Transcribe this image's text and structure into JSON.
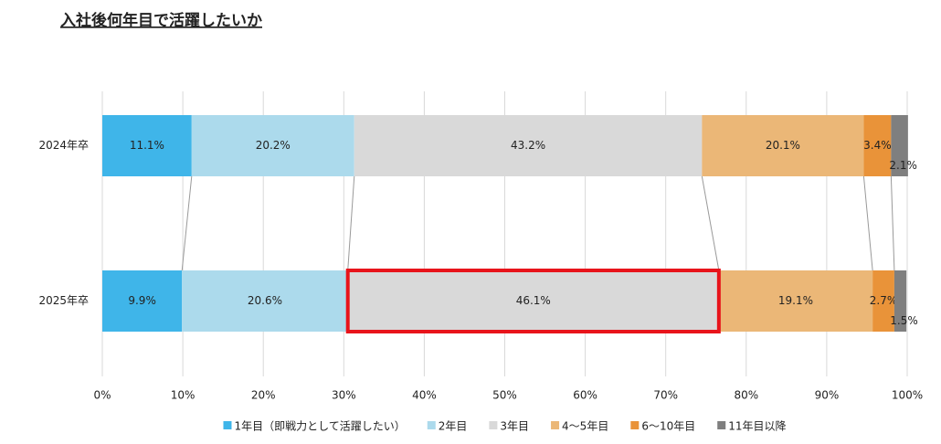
{
  "chart_data": {
    "type": "stacked-bar-horizontal",
    "title": "入社後何年目で活躍したいか",
    "categories": [
      "2024年卒",
      "2025年卒"
    ],
    "series": [
      {
        "name": "1年目（即戦力として活躍したい）",
        "color": "#3fb5e9",
        "values": [
          11.1,
          9.9
        ],
        "value_labels": [
          "11.1%",
          "9.9%"
        ]
      },
      {
        "name": "2年目",
        "color": "#acdaec",
        "values": [
          20.2,
          20.6
        ],
        "value_labels": [
          "20.2%",
          "20.6%"
        ]
      },
      {
        "name": "3年目",
        "color": "#d9d9d9",
        "values": [
          43.2,
          46.1
        ],
        "value_labels": [
          "43.2%",
          "46.1%"
        ]
      },
      {
        "name": "4～5年目",
        "color": "#ebb777",
        "values": [
          20.1,
          19.1
        ],
        "value_labels": [
          "20.1%",
          "19.1%"
        ]
      },
      {
        "name": "6～10年目",
        "color": "#e99339",
        "values": [
          3.4,
          2.7
        ],
        "value_labels": [
          "3.4%",
          "2.7%"
        ]
      },
      {
        "name": "11年目以降",
        "color": "#7f7f7f",
        "values": [
          2.1,
          1.5
        ],
        "value_labels": [
          "2.1%",
          "1.5%"
        ]
      }
    ],
    "xlim": [
      0,
      100
    ],
    "xticks": [
      {
        "value": 0,
        "label": "0%"
      },
      {
        "value": 10,
        "label": "10%"
      },
      {
        "value": 20,
        "label": "20%"
      },
      {
        "value": 30,
        "label": "30%"
      },
      {
        "value": 40,
        "label": "40%"
      },
      {
        "value": 50,
        "label": "50%"
      },
      {
        "value": 60,
        "label": "60%"
      },
      {
        "value": 70,
        "label": "70%"
      },
      {
        "value": 80,
        "label": "80%"
      },
      {
        "value": 90,
        "label": "90%"
      },
      {
        "value": 100,
        "label": "100%"
      }
    ],
    "grid": true,
    "legend": "bottom",
    "highlight": {
      "category": 1,
      "series": 2,
      "color": "#e8141b"
    }
  }
}
